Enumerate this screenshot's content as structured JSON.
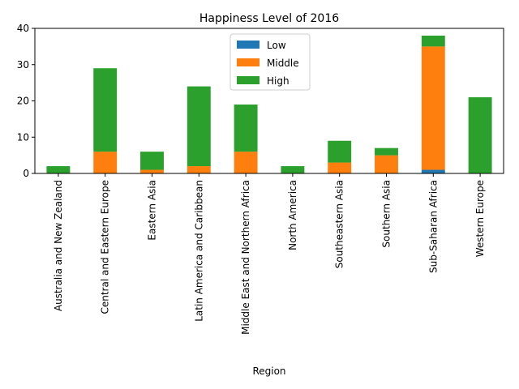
{
  "chart_data": {
    "type": "bar",
    "stacked": true,
    "title": "Happiness Level of 2016",
    "xlabel": "Region",
    "ylabel": "",
    "ylim": [
      0,
      40
    ],
    "yticks": [
      0,
      10,
      20,
      30,
      40
    ],
    "grid": false,
    "legend_position": "upper center",
    "categories": [
      "Australia and New Zealand",
      "Central and Eastern Europe",
      "Eastern Asia",
      "Latin America and Caribbean",
      "Middle East and Northern Africa",
      "North America",
      "Southeastern Asia",
      "Southern Asia",
      "Sub-Saharan Africa",
      "Western Europe"
    ],
    "series": [
      {
        "name": "Low",
        "color": "#1f77b4",
        "values": [
          0,
          0,
          0,
          0,
          0,
          0,
          0,
          0,
          1,
          0
        ]
      },
      {
        "name": "Middle",
        "color": "#ff7f0e",
        "values": [
          0,
          6,
          1,
          2,
          6,
          0,
          3,
          5,
          34,
          0
        ]
      },
      {
        "name": "High",
        "color": "#2ca02c",
        "values": [
          2,
          23,
          5,
          22,
          13,
          2,
          6,
          2,
          3,
          21
        ]
      }
    ]
  }
}
